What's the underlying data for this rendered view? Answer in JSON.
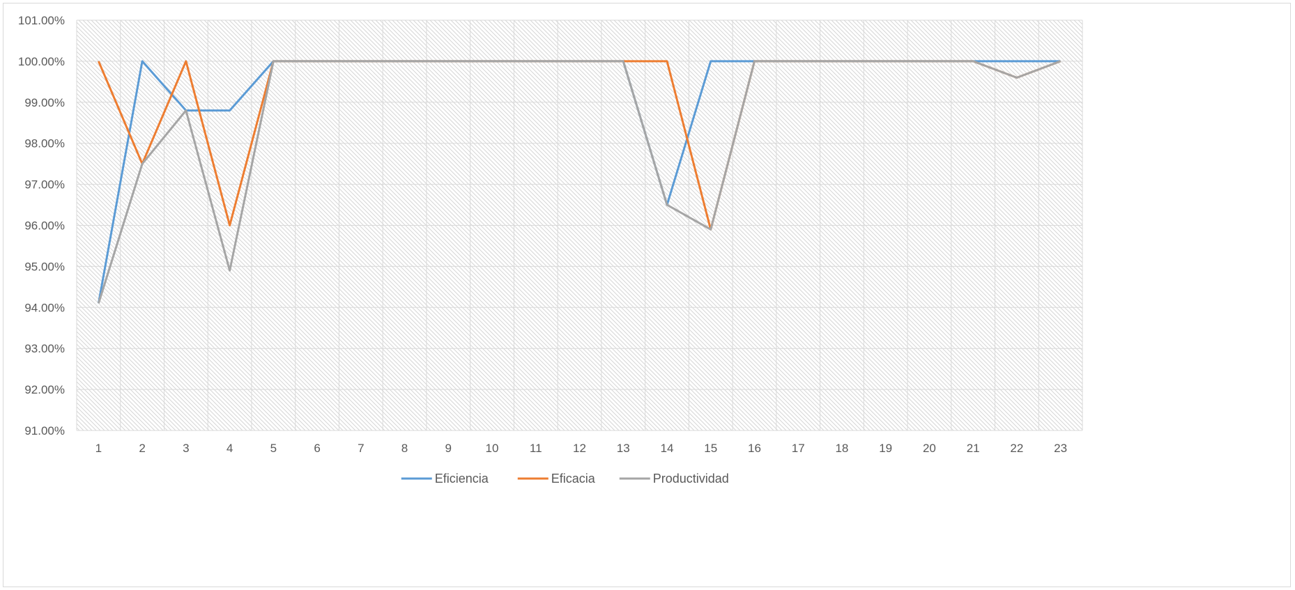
{
  "chart_data": {
    "type": "line",
    "title": "",
    "xlabel": "",
    "ylabel": "",
    "categories": [
      "1",
      "2",
      "3",
      "4",
      "5",
      "6",
      "7",
      "8",
      "9",
      "10",
      "11",
      "12",
      "13",
      "14",
      "15",
      "16",
      "17",
      "18",
      "19",
      "20",
      "21",
      "22",
      "23"
    ],
    "ylim": [
      0.91,
      1.01
    ],
    "y_ticks": [
      "91.00%",
      "92.00%",
      "93.00%",
      "94.00%",
      "95.00%",
      "96.00%",
      "97.00%",
      "98.00%",
      "99.00%",
      "100.00%",
      "101.00%"
    ],
    "grid": true,
    "legend_position": "bottom",
    "series": [
      {
        "name": "Eficiencia",
        "color": "#5b9bd5",
        "values": [
          0.941,
          1.0,
          0.988,
          0.988,
          1.0,
          1.0,
          1.0,
          1.0,
          1.0,
          1.0,
          1.0,
          1.0,
          1.0,
          0.965,
          1.0,
          1.0,
          1.0,
          1.0,
          1.0,
          1.0,
          1.0,
          1.0,
          1.0
        ]
      },
      {
        "name": "Eficacia",
        "color": "#ed7d31",
        "values": [
          1.0,
          0.975,
          1.0,
          0.96,
          1.0,
          1.0,
          1.0,
          1.0,
          1.0,
          1.0,
          1.0,
          1.0,
          1.0,
          1.0,
          0.959,
          1.0,
          1.0,
          1.0,
          1.0,
          1.0,
          1.0,
          0.996,
          1.0
        ]
      },
      {
        "name": "Productividad",
        "color": "#a5a5a5",
        "values": [
          0.941,
          0.975,
          0.988,
          0.949,
          1.0,
          1.0,
          1.0,
          1.0,
          1.0,
          1.0,
          1.0,
          1.0,
          1.0,
          0.965,
          0.959,
          1.0,
          1.0,
          1.0,
          1.0,
          1.0,
          1.0,
          0.996,
          1.0
        ]
      }
    ]
  }
}
